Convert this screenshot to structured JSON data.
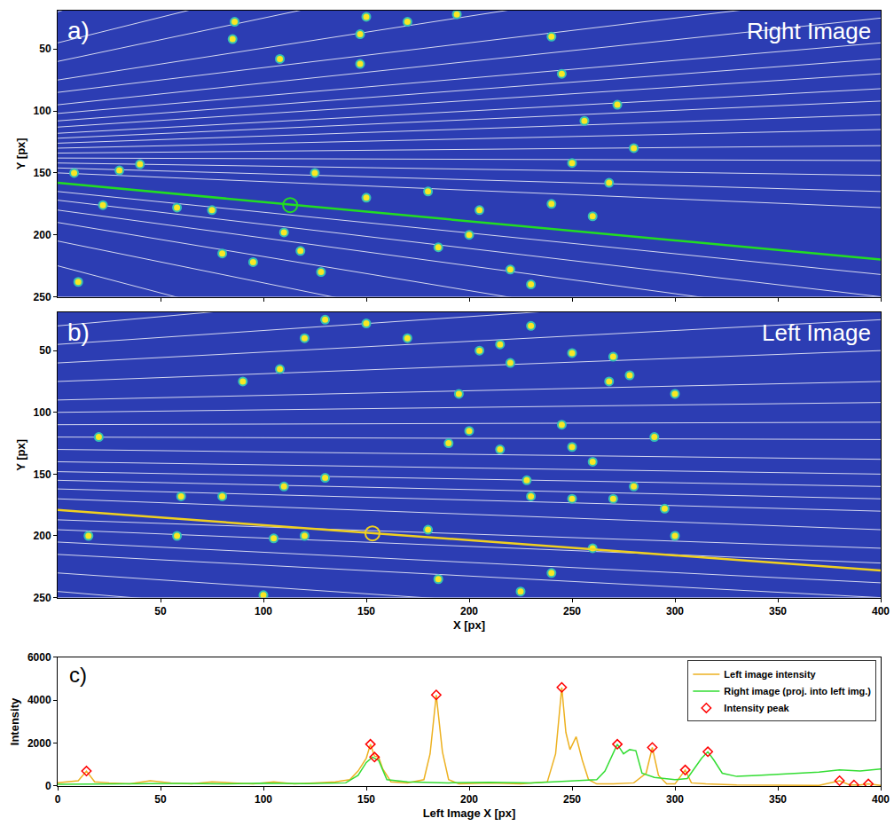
{
  "chart_data": [
    {
      "type": "image",
      "title": "Right Image",
      "annotations": [
        "a)"
      ],
      "ylabel": "Y [px]",
      "xlim": [
        0,
        400
      ],
      "xticks": [
        50,
        100,
        150,
        200,
        250,
        300,
        350,
        400
      ],
      "ylim": [
        250,
        19
      ],
      "yticks": [
        50,
        100,
        150,
        200,
        250
      ],
      "tick_labels": "y",
      "color": "#2c3db3",
      "spots": {
        "color": "#f9e723",
        "marker": "circle",
        "x": [
          86,
          85,
          108,
          150,
          147,
          147,
          170,
          194,
          240,
          245,
          272,
          256,
          8,
          30,
          40,
          22,
          58,
          75,
          110,
          80,
          95,
          118,
          128,
          10,
          150,
          180,
          205,
          240,
          260,
          268,
          200,
          220,
          230,
          185,
          280,
          250,
          125
        ],
        "y": [
          28,
          42,
          58,
          24,
          38,
          62,
          28,
          22,
          40,
          70,
          95,
          108,
          150,
          148,
          143,
          176,
          178,
          180,
          198,
          215,
          222,
          213,
          230,
          238,
          170,
          165,
          180,
          175,
          185,
          158,
          200,
          228,
          240,
          210,
          130,
          142,
          150
        ]
      },
      "epipolar_lines": {
        "color": "#ffffff",
        "x": [
          0,
          400
        ],
        "y": [
          [
            20,
            -200
          ],
          [
            45,
            -120
          ],
          [
            60,
            -80
          ],
          [
            75,
            -28
          ],
          [
            85,
            5
          ],
          [
            95,
            25
          ],
          [
            102,
            45
          ],
          [
            108,
            58
          ],
          [
            113,
            70
          ],
          [
            118,
            82
          ],
          [
            122,
            92
          ],
          [
            126,
            103
          ],
          [
            130,
            115
          ],
          [
            134,
            128
          ],
          [
            138,
            140
          ],
          [
            142,
            152
          ],
          [
            146,
            165
          ],
          [
            150,
            178
          ],
          [
            165,
            232
          ],
          [
            172,
            250
          ],
          [
            180,
            270
          ],
          [
            190,
            300
          ],
          [
            205,
            340
          ],
          [
            225,
            400
          ],
          [
            250,
            470
          ]
        ]
      },
      "highlight": {
        "color": "#22dd22",
        "x": [
          0,
          400
        ],
        "y": [
          158,
          220
        ],
        "point": {
          "x": 113,
          "y": 176
        }
      }
    },
    {
      "type": "image",
      "title": "Left Image",
      "annotations": [
        "b)"
      ],
      "xlabel": "X [px]",
      "ylabel": "Y [px]",
      "xlim": [
        0,
        400
      ],
      "xticks": [
        50,
        100,
        150,
        200,
        250,
        300,
        350,
        400
      ],
      "ylim": [
        250,
        19
      ],
      "yticks": [
        50,
        100,
        150,
        200,
        250
      ],
      "color": "#2c3db3",
      "spots": {
        "color": "#f9e723",
        "marker": "circle",
        "x": [
          130,
          150,
          120,
          170,
          205,
          215,
          220,
          250,
          270,
          268,
          278,
          300,
          230,
          90,
          108,
          195,
          245,
          130,
          110,
          60,
          80,
          58,
          105,
          120,
          180,
          228,
          230,
          250,
          270,
          280,
          295,
          300,
          260,
          240,
          225,
          185,
          100,
          15,
          190,
          215,
          250,
          290,
          260,
          200,
          20
        ],
        "y": [
          25,
          28,
          40,
          40,
          50,
          45,
          60,
          52,
          55,
          75,
          70,
          85,
          30,
          75,
          65,
          85,
          110,
          153,
          160,
          168,
          168,
          200,
          202,
          200,
          195,
          155,
          168,
          170,
          170,
          160,
          178,
          200,
          210,
          230,
          245,
          235,
          248,
          200,
          125,
          130,
          128,
          120,
          140,
          115,
          120
        ]
      },
      "epipolar_lines": {
        "color": "#ffffff",
        "x": [
          0,
          400
        ],
        "y": [
          [
            15,
            -60
          ],
          [
            30,
            -30
          ],
          [
            45,
            0
          ],
          [
            60,
            25
          ],
          [
            75,
            50
          ],
          [
            90,
            75
          ],
          [
            100,
            92
          ],
          [
            110,
            108
          ],
          [
            120,
            122
          ],
          [
            130,
            138
          ],
          [
            140,
            150
          ],
          [
            148,
            160
          ],
          [
            155,
            170
          ],
          [
            162,
            180
          ],
          [
            170,
            195
          ],
          [
            187,
            210
          ],
          [
            195,
            222
          ],
          [
            205,
            238
          ],
          [
            215,
            250
          ],
          [
            230,
            275
          ],
          [
            245,
            300
          ]
        ]
      },
      "highlight": {
        "color": "#f0d020",
        "x": [
          0,
          400
        ],
        "y": [
          179,
          228
        ],
        "point": {
          "x": 153,
          "y": 198
        }
      }
    },
    {
      "type": "line",
      "annotations": [
        "c)"
      ],
      "xlabel": "Left Image X [px]",
      "ylabel": "Intensity",
      "xlim": [
        0,
        400
      ],
      "xticks": [
        0,
        50,
        100,
        150,
        200,
        250,
        300,
        350,
        400
      ],
      "ylim": [
        0,
        6000
      ],
      "yticks": [
        0,
        2000,
        4000,
        6000
      ],
      "legend": "upper right",
      "series": [
        {
          "name": "Left image intensity",
          "type": "line",
          "color": "#edb120",
          "x": [
            0,
            5,
            10,
            14,
            18,
            25,
            35,
            45,
            55,
            65,
            75,
            85,
            95,
            105,
            115,
            125,
            135,
            142,
            146,
            150,
            152,
            154,
            156,
            158,
            162,
            170,
            178,
            181,
            184,
            187,
            190,
            195,
            210,
            225,
            238,
            242,
            245,
            247,
            249,
            252,
            255,
            258,
            262,
            270,
            280,
            286,
            289,
            292,
            296,
            300,
            305,
            308,
            315,
            330,
            350,
            370,
            380,
            385,
            390,
            394,
            400
          ],
          "values": [
            150,
            200,
            250,
            700,
            200,
            150,
            100,
            250,
            150,
            100,
            200,
            150,
            100,
            200,
            100,
            150,
            200,
            300,
            700,
            1300,
            1950,
            1400,
            1350,
            800,
            200,
            150,
            300,
            1500,
            4250,
            1600,
            300,
            100,
            150,
            100,
            200,
            1500,
            4600,
            2500,
            1700,
            2300,
            1200,
            300,
            100,
            100,
            150,
            600,
            1800,
            500,
            100,
            100,
            750,
            150,
            100,
            50,
            50,
            30,
            250,
            50,
            50,
            100,
            30
          ]
        },
        {
          "name": "Right image (proj. into left img.)",
          "type": "line",
          "color": "#33dd33",
          "x": [
            0,
            20,
            40,
            60,
            80,
            100,
            120,
            140,
            146,
            150,
            153,
            156,
            160,
            170,
            190,
            210,
            230,
            250,
            262,
            266,
            269,
            272,
            275,
            278,
            281,
            284,
            290,
            300,
            306,
            310,
            313,
            316,
            319,
            323,
            330,
            340,
            350,
            360,
            370,
            380,
            390,
            400
          ],
          "values": [
            80,
            100,
            90,
            120,
            100,
            130,
            110,
            150,
            500,
            1100,
            1350,
            1200,
            300,
            200,
            150,
            180,
            150,
            250,
            300,
            700,
            1300,
            1950,
            1500,
            1700,
            1650,
            600,
            400,
            300,
            350,
            900,
            1300,
            1600,
            1200,
            600,
            450,
            500,
            550,
            600,
            650,
            750,
            700,
            800
          ]
        },
        {
          "name": "Intensity peak",
          "type": "scatter",
          "marker": "diamond-open",
          "color": "#ff0000",
          "x": [
            14,
            152,
            154,
            184,
            245,
            272,
            289,
            305,
            316,
            380,
            387,
            394
          ],
          "values": [
            700,
            1950,
            1350,
            4250,
            4600,
            1950,
            1800,
            750,
            1600,
            250,
            50,
            100
          ]
        }
      ]
    }
  ]
}
